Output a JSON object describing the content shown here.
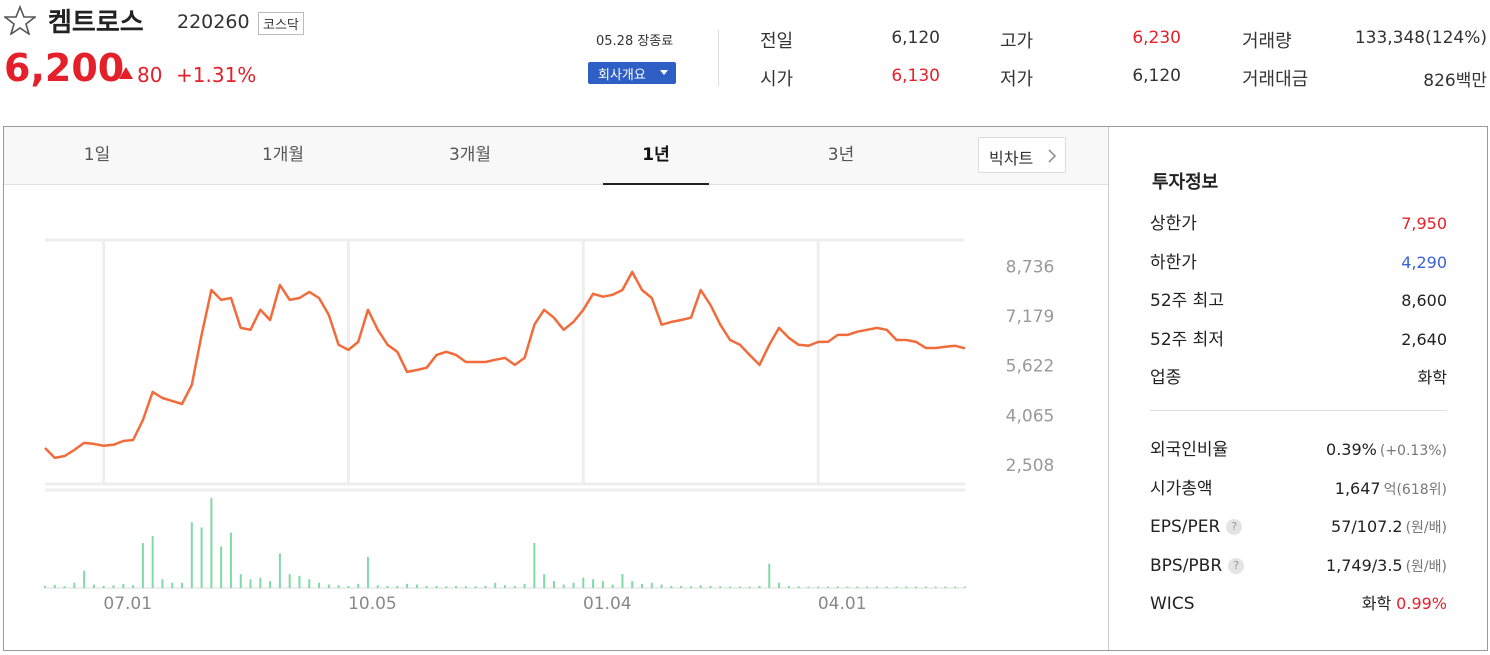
{
  "header": {
    "name": "켐트로스",
    "code": "220260",
    "market": "코스닥",
    "price": "6,200",
    "change": "80",
    "change_pct": "+1.31%",
    "status": "05.28 장종료",
    "company_button": "회사개요"
  },
  "quote": [
    {
      "label": "전일",
      "value": "6,120"
    },
    {
      "label": "시가",
      "value": "6,130",
      "color": "#e4202b"
    },
    {
      "label": "고가",
      "value": "6,230",
      "color": "#e4202b"
    },
    {
      "label": "저가",
      "value": "6,120"
    },
    {
      "label": "거래량",
      "value": "133,348(124%)"
    },
    {
      "label": "거래대금",
      "value": "826백만"
    }
  ],
  "tabs": [
    "1일",
    "1개월",
    "3개월",
    "1년",
    "3년"
  ],
  "selected_tab": 3,
  "big_chart": "빅차트",
  "chart_data": {
    "type": "line",
    "color": "#f26b3a",
    "values": [
      3070,
      2760,
      2820,
      3010,
      3230,
      3200,
      3140,
      3170,
      3290,
      3320,
      3950,
      4830,
      4640,
      4550,
      4450,
      5050,
      6620,
      8030,
      7720,
      7780,
      6840,
      6780,
      7410,
      7090,
      8190,
      7720,
      7780,
      7970,
      7780,
      7250,
      6310,
      6150,
      6400,
      7410,
      6780,
      6310,
      6090,
      5460,
      5520,
      5590,
      5990,
      6090,
      5990,
      5770,
      5770,
      5770,
      5840,
      5900,
      5680,
      5900,
      6940,
      7410,
      7160,
      6780,
      7030,
      7410,
      7910,
      7820,
      7880,
      8030,
      8600,
      8030,
      7780,
      6940,
      7030,
      7090,
      7160,
      8030,
      7560,
      6940,
      6460,
      6310,
      5990,
      5680,
      6310,
      6840,
      6530,
      6310,
      6280,
      6400,
      6400,
      6620,
      6620,
      6720,
      6780,
      6840,
      6780,
      6460,
      6460,
      6400,
      6210,
      6210,
      6250,
      6280,
      6200
    ],
    "xlim": [
      0,
      94
    ],
    "xticks": [
      {
        "value": 6,
        "label": "07.01"
      },
      {
        "value": 31,
        "label": "10.05"
      },
      {
        "value": 55,
        "label": "01.04"
      },
      {
        "value": 79,
        "label": "04.01"
      }
    ],
    "ylim": [
      1940,
      9600
    ],
    "yticks": [
      {
        "value": 8736,
        "label": "8,736"
      },
      {
        "value": 7179,
        "label": "7,179"
      },
      {
        "value": 5622,
        "label": "5,622"
      },
      {
        "value": 4065,
        "label": "4,065"
      },
      {
        "value": 2508,
        "label": "2,508"
      }
    ],
    "volume": {
      "color": "#7fdaa6",
      "vlim": [
        0,
        2600000
      ],
      "values": [
        60000,
        90000,
        50000,
        150000,
        500000,
        100000,
        60000,
        80000,
        120000,
        80000,
        1300000,
        1500000,
        250000,
        150000,
        150000,
        1900000,
        1750000,
        2600000,
        1200000,
        1600000,
        400000,
        250000,
        300000,
        200000,
        1000000,
        400000,
        350000,
        250000,
        150000,
        100000,
        80000,
        60000,
        120000,
        900000,
        80000,
        60000,
        60000,
        120000,
        100000,
        60000,
        60000,
        50000,
        60000,
        50000,
        50000,
        60000,
        150000,
        80000,
        60000,
        120000,
        1300000,
        400000,
        200000,
        100000,
        150000,
        300000,
        250000,
        200000,
        100000,
        400000,
        200000,
        120000,
        150000,
        100000,
        60000,
        60000,
        50000,
        80000,
        60000,
        50000,
        40000,
        40000,
        40000,
        60000,
        700000,
        150000,
        60000,
        50000,
        40000,
        40000,
        40000,
        50000,
        40000,
        40000,
        40000,
        40000,
        40000,
        40000,
        40000,
        40000,
        40000,
        40000,
        40000,
        40000,
        40000
      ]
    }
  },
  "invest": {
    "title": "투자정보",
    "group1": [
      {
        "label": "상한가",
        "value": "7,950",
        "color": "#e4202b"
      },
      {
        "label": "하한가",
        "value": "4,290",
        "color": "#3b62d6"
      },
      {
        "label": "52주 최고",
        "value": "8,600"
      },
      {
        "label": "52주 최저",
        "value": "2,640"
      },
      {
        "label": "업종",
        "value": "화학"
      }
    ],
    "group2": [
      {
        "label": "외국인비율",
        "value": "0.39%",
        "extra": "(+0.13%)"
      },
      {
        "label": "시가총액",
        "value": "1,647",
        "extra": "억(618위)"
      },
      {
        "label": "EPS/PER",
        "help": "?",
        "value": "57/107.2",
        "extra": "(원/배)"
      },
      {
        "label": "BPS/PBR",
        "help": "?",
        "value": "1,749/3.5",
        "extra": "(원/배)"
      },
      {
        "label": "WICS",
        "value": "화학",
        "extra": "0.99%",
        "extra_color": "#e4202b"
      }
    ]
  }
}
